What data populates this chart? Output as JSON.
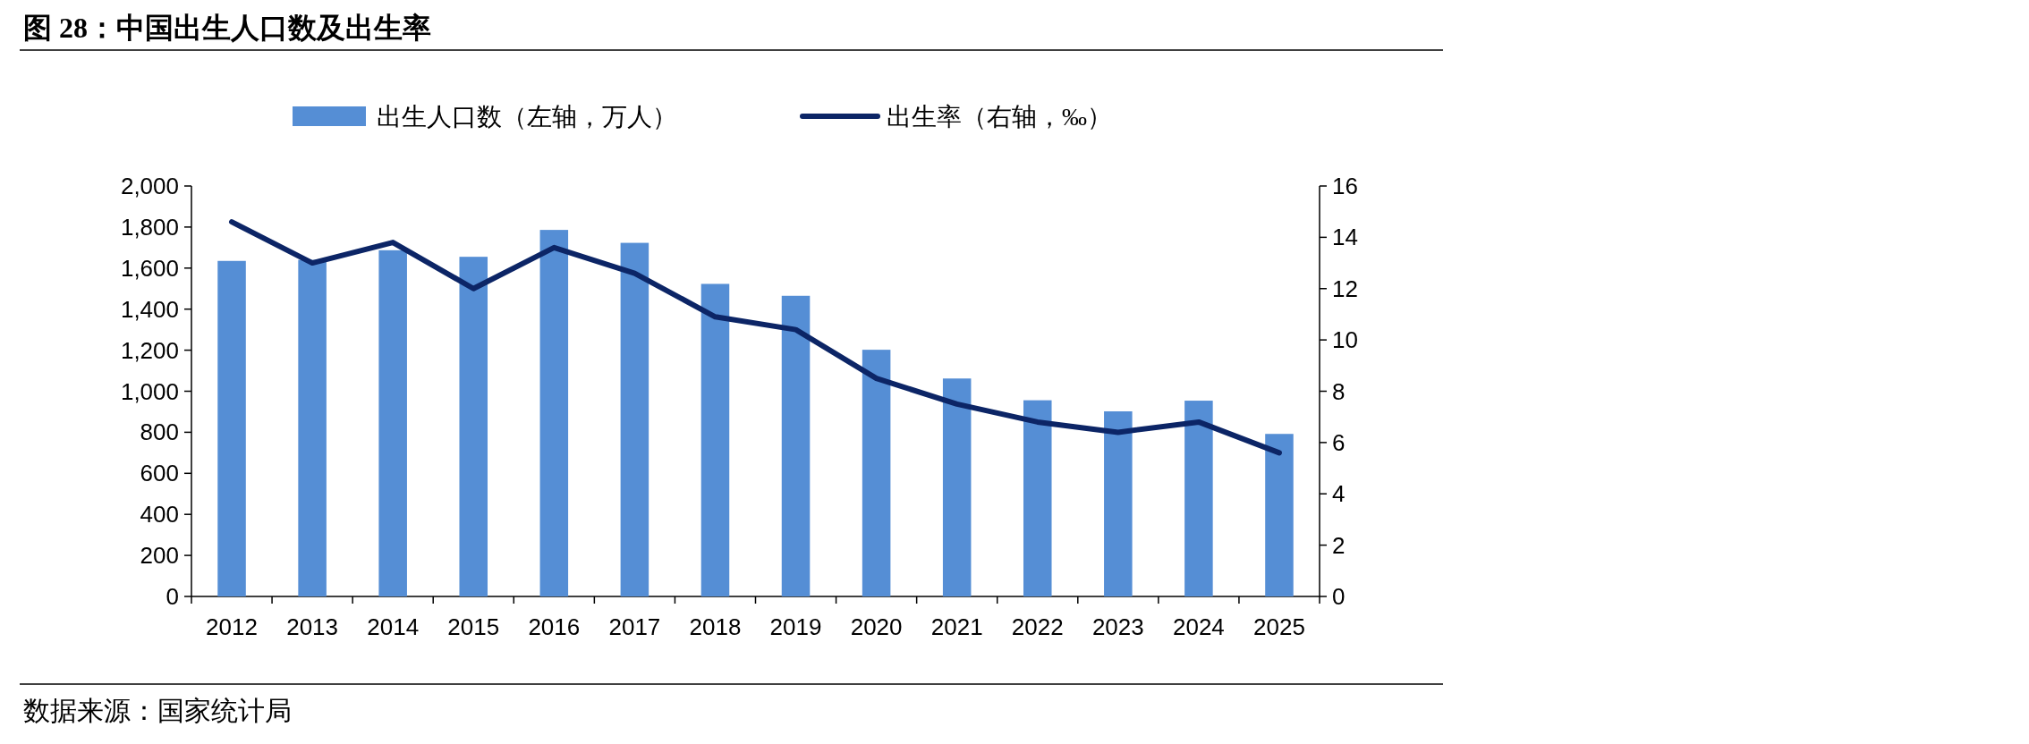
{
  "chart_data": {
    "type": "bar",
    "title": "图 28：中国出生人口数及出生率",
    "categories": [
      "2012",
      "2013",
      "2014",
      "2015",
      "2016",
      "2017",
      "2018",
      "2019",
      "2020",
      "2021",
      "2022",
      "2023",
      "2024",
      "2025"
    ],
    "series": [
      {
        "name": "出生人口数（左轴，万人）",
        "color": "#558ed5",
        "values": [
          1635,
          1640,
          1687,
          1655,
          1786,
          1723,
          1523,
          1465,
          1202,
          1062,
          956,
          902,
          954,
          792
        ]
      },
      {
        "name": "出生率（右轴，‰）",
        "type": "line",
        "axis": "y2",
        "color": "#0c2566",
        "values": [
          14.6,
          13.0,
          13.8,
          12.0,
          13.6,
          12.6,
          10.9,
          10.4,
          8.5,
          7.5,
          6.8,
          6.4,
          6.8,
          5.6
        ]
      }
    ],
    "ylim": [
      0,
      2000
    ],
    "yticks": [
      {
        "value": 0,
        "label": "0"
      },
      {
        "value": 200,
        "label": "200"
      },
      {
        "value": 400,
        "label": "400"
      },
      {
        "value": 600,
        "label": "600"
      },
      {
        "value": 800,
        "label": "800"
      },
      {
        "value": 1000,
        "label": "1,000"
      },
      {
        "value": 1200,
        "label": "1,200"
      },
      {
        "value": 1400,
        "label": "1,400"
      },
      {
        "value": 1600,
        "label": "1,600"
      },
      {
        "value": 1800,
        "label": "1,800"
      },
      {
        "value": 2000,
        "label": "2,000"
      }
    ],
    "y2lim": [
      0,
      16
    ],
    "y2ticks": [
      0,
      2,
      4,
      6,
      8,
      10,
      12,
      14,
      16
    ],
    "legend": "top",
    "grid": false,
    "marker": "none",
    "line_style": "solid",
    "annotations": [
      "数据来源：国家统计局"
    ]
  }
}
